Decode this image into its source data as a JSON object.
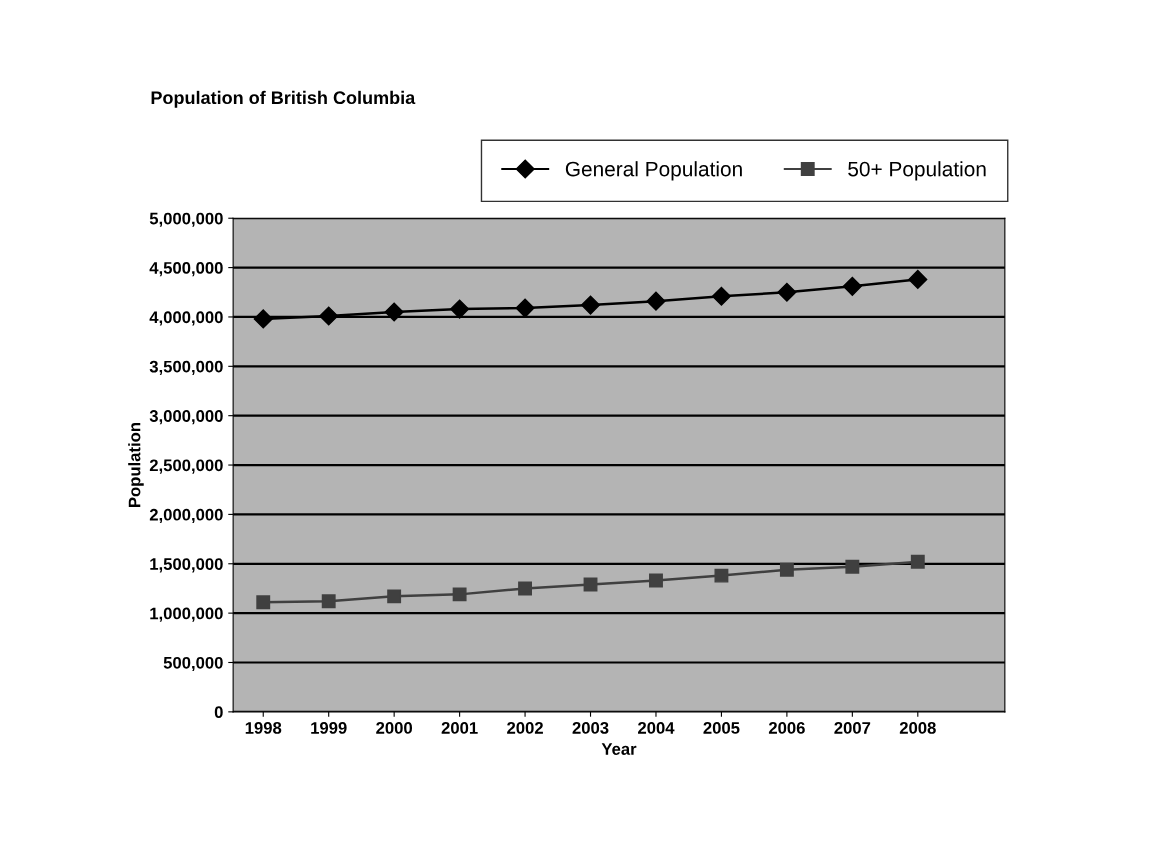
{
  "chart_data": {
    "type": "line",
    "title": "Population of British Columbia",
    "xlabel": "Year",
    "ylabel": "Population",
    "categories": [
      "1998",
      "1999",
      "2000",
      "2001",
      "2002",
      "2003",
      "2004",
      "2005",
      "2006",
      "2007",
      "2008"
    ],
    "series": [
      {
        "name": "General Population",
        "color": "#000000",
        "marker": "diamond",
        "values": [
          3980000,
          4010000,
          4050000,
          4080000,
          4090000,
          4120000,
          4160000,
          4210000,
          4250000,
          4310000,
          4380000
        ]
      },
      {
        "name": "50+ Population",
        "color": "#404040",
        "marker": "square",
        "values": [
          1110000,
          1120000,
          1170000,
          1190000,
          1250000,
          1290000,
          1330000,
          1380000,
          1440000,
          1470000,
          1520000
        ]
      }
    ],
    "ylim": [
      0,
      5000000
    ],
    "yticks": [
      {
        "value": 0,
        "label": "0"
      },
      {
        "value": 500000,
        "label": "500,000"
      },
      {
        "value": 1000000,
        "label": "1,000,000"
      },
      {
        "value": 1500000,
        "label": "1,500,000"
      },
      {
        "value": 2000000,
        "label": "2,000,000"
      },
      {
        "value": 2500000,
        "label": "2,500,000"
      },
      {
        "value": 3000000,
        "label": "3,000,000"
      },
      {
        "value": 3500000,
        "label": "3,500,000"
      },
      {
        "value": 4000000,
        "label": "4,000,000"
      },
      {
        "value": 4500000,
        "label": "4,500,000"
      },
      {
        "value": 5000000,
        "label": "5,000,000"
      }
    ],
    "grid": "y",
    "legend": "top right",
    "line_style": "solid"
  }
}
